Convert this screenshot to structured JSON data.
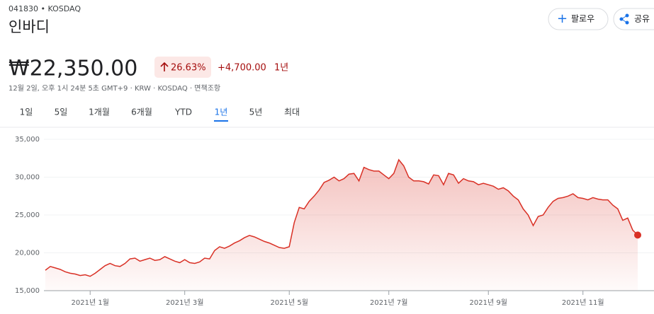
{
  "header": {
    "ticker": "041830 • KOSDAQ",
    "name": "인바디",
    "price": "₩22,350.00",
    "change_pct": "26.63%",
    "change": "+4,700.00",
    "change_period": "1년",
    "timestamp": "12월 2일, 오후 1시 24분 5초 GMT+9 · KRW · KOSDAQ · 면책조항",
    "follow": "팔로우",
    "share": "공유",
    "tabs": [
      "1일",
      "5일",
      "1개월",
      "6개월",
      "YTD",
      "1년",
      "5년",
      "최대"
    ],
    "selected_tab": 5
  },
  "chart_data": {
    "type": "area",
    "color": "#d93025",
    "ylim": [
      15000,
      35000
    ],
    "yticks": [
      {
        "value": 15000,
        "label": "15,000"
      },
      {
        "value": 20000,
        "label": "20,000"
      },
      {
        "value": 25000,
        "label": "25,000"
      },
      {
        "value": 30000,
        "label": "30,000"
      },
      {
        "value": 35000,
        "label": "35,000"
      }
    ],
    "grid": true,
    "categories": [
      null,
      null,
      null,
      null,
      null,
      null,
      null,
      null,
      null,
      "2021년 1월",
      null,
      null,
      null,
      null,
      null,
      null,
      null,
      null,
      null,
      null,
      null,
      null,
      null,
      null,
      null,
      null,
      null,
      null,
      "2021년 3월",
      null,
      null,
      null,
      null,
      null,
      null,
      null,
      null,
      null,
      null,
      null,
      null,
      null,
      null,
      null,
      null,
      null,
      null,
      null,
      null,
      "2021년 5월",
      null,
      null,
      null,
      null,
      null,
      null,
      null,
      null,
      null,
      null,
      null,
      null,
      null,
      null,
      null,
      null,
      null,
      null,
      null,
      "2021년 7월",
      null,
      null,
      null,
      null,
      null,
      null,
      null,
      null,
      null,
      null,
      null,
      null,
      null,
      null,
      null,
      null,
      null,
      null,
      null,
      "2021년 9월",
      null,
      null,
      null,
      null,
      null,
      null,
      null,
      null,
      null,
      null,
      null,
      null,
      null,
      null,
      null,
      null,
      null,
      null,
      "2021년 11월",
      null,
      null,
      null,
      null,
      null,
      null,
      null,
      null,
      null,
      null,
      null
    ],
    "values": [
      17700,
      18200,
      18000,
      17800,
      17500,
      17300,
      17200,
      17000,
      17100,
      16900,
      17300,
      17800,
      18300,
      18600,
      18300,
      18200,
      18600,
      19200,
      19300,
      18900,
      19100,
      19300,
      19000,
      19100,
      19500,
      19200,
      18900,
      18700,
      19100,
      18700,
      18600,
      18800,
      19300,
      19200,
      20300,
      20800,
      20600,
      20900,
      21300,
      21600,
      22000,
      22300,
      22100,
      21800,
      21500,
      21300,
      21000,
      20700,
      20600,
      20800,
      24000,
      26000,
      25800,
      26800,
      27500,
      28300,
      29300,
      29600,
      30000,
      29500,
      29800,
      30400,
      30500,
      29500,
      31300,
      31000,
      30800,
      30800,
      30300,
      29800,
      30500,
      32300,
      31500,
      30000,
      29500,
      29500,
      29400,
      29100,
      30300,
      30200,
      29000,
      30500,
      30300,
      29200,
      29800,
      29500,
      29400,
      29000,
      29200,
      29000,
      28800,
      28400,
      28600,
      28200,
      27500,
      27000,
      25800,
      25000,
      23600,
      24800,
      25000,
      26000,
      26800,
      27200,
      27300,
      27500,
      27800,
      27300,
      27200,
      27000,
      27300,
      27100,
      27000,
      27000,
      26300,
      25800,
      24300,
      24600,
      23000,
      22350
    ]
  }
}
